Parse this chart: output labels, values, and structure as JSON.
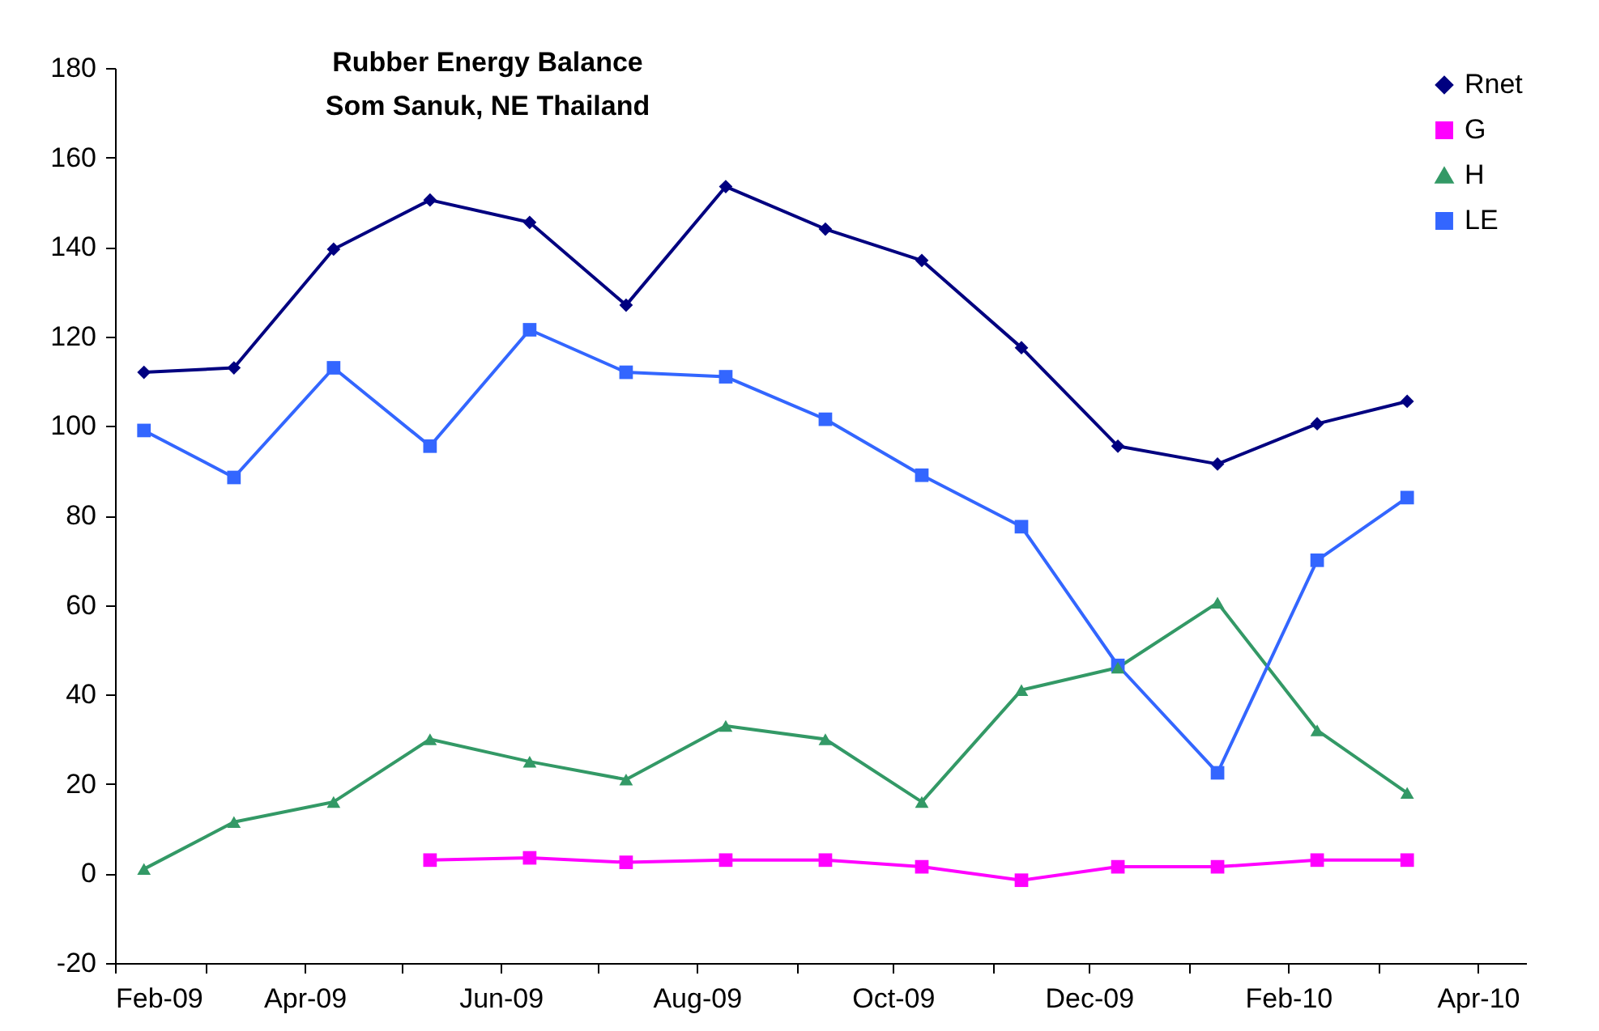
{
  "chart_data": {
    "type": "line",
    "title": "Rubber Energy Balance",
    "subtitle": "Som Sanuk, NE Thailand",
    "x": [
      "2009-02-10",
      "2009-03-10",
      "2009-04-10",
      "2009-05-10",
      "2009-06-10",
      "2009-07-10",
      "2009-08-10",
      "2009-09-10",
      "2009-10-10",
      "2009-11-10",
      "2009-12-10",
      "2010-01-10",
      "2010-02-10",
      "2010-03-10"
    ],
    "series": [
      {
        "name": "Rnet",
        "color": "#000080",
        "marker": "diamond",
        "values": [
          112,
          113,
          139.5,
          150.5,
          145.5,
          127,
          153.5,
          144,
          137,
          117.5,
          95.5,
          91.5,
          100.5,
          105.5
        ]
      },
      {
        "name": "G",
        "color": "#ff00ff",
        "marker": "square",
        "values": [
          null,
          null,
          null,
          3,
          3.5,
          2.5,
          3,
          3,
          1.5,
          -1.5,
          1.5,
          1.5,
          3,
          3
        ]
      },
      {
        "name": "H",
        "color": "#339966",
        "marker": "triangle",
        "values": [
          1,
          11.5,
          16,
          30,
          25,
          21,
          33,
          30,
          16,
          41,
          46,
          60.5,
          32,
          18
        ]
      },
      {
        "name": "LE",
        "color": "#3366ff",
        "marker": "square",
        "values": [
          99,
          88.5,
          113,
          95.5,
          121.5,
          112,
          111,
          101.5,
          89,
          77.5,
          46.5,
          22.5,
          70,
          84
        ]
      }
    ],
    "xlim": [
      "2009-02-01",
      "2010-04-16"
    ],
    "xticks": [
      {
        "value": "2009-02-01",
        "label": "Feb-09"
      },
      {
        "value": "2009-03-01",
        "label": null
      },
      {
        "value": "2009-04-01",
        "label": "Apr-09"
      },
      {
        "value": "2009-05-01",
        "label": null
      },
      {
        "value": "2009-06-01",
        "label": "Jun-09"
      },
      {
        "value": "2009-07-01",
        "label": null
      },
      {
        "value": "2009-08-01",
        "label": "Aug-09"
      },
      {
        "value": "2009-09-01",
        "label": null
      },
      {
        "value": "2009-10-01",
        "label": "Oct-09"
      },
      {
        "value": "2009-11-01",
        "label": null
      },
      {
        "value": "2009-12-01",
        "label": "Dec-09"
      },
      {
        "value": "2010-01-01",
        "label": null
      },
      {
        "value": "2010-02-01",
        "label": "Feb-10"
      },
      {
        "value": "2010-03-01",
        "label": null
      },
      {
        "value": "2010-04-01",
        "label": "Apr-10"
      }
    ],
    "ylim": [
      -20,
      180
    ],
    "yticks": [
      -20,
      0,
      20,
      40,
      60,
      80,
      100,
      120,
      140,
      160,
      180
    ],
    "grid": false,
    "legend": "top right",
    "line_style": "solid"
  }
}
